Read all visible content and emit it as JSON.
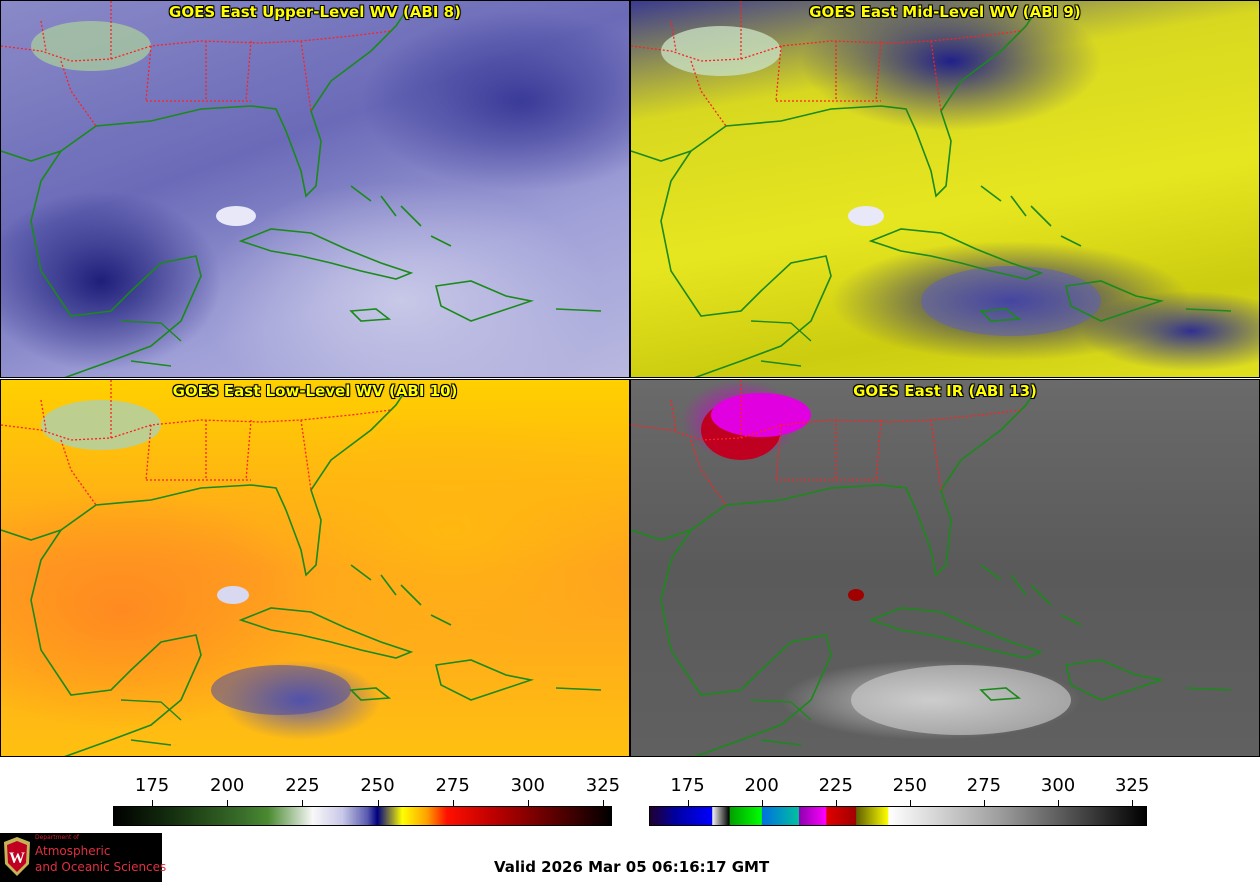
{
  "panels": [
    {
      "title": "GOES East Upper-Level WV (ABI 8)"
    },
    {
      "title": "GOES East Mid-Level WV (ABI 9)"
    },
    {
      "title": "GOES East Low-Level WV (ABI 10)"
    },
    {
      "title": "GOES East IR (ABI 13)"
    }
  ],
  "colorbars": [
    {
      "colormap": "water-vapor",
      "range": [
        162,
        328
      ],
      "ticks": [
        "175",
        "200",
        "225",
        "250",
        "275",
        "300",
        "325"
      ]
    },
    {
      "colormap": "infrared",
      "range": [
        162,
        330
      ],
      "ticks": [
        "175",
        "200",
        "225",
        "250",
        "275",
        "300",
        "325"
      ]
    }
  ],
  "map_colors": {
    "coastline": "#1a8a1a",
    "state_borders": "#ff2020",
    "title": "#ffff00"
  },
  "logo": {
    "line1": "Department of",
    "line2": "Atmospheric",
    "line3": "and Oceanic Sciences"
  },
  "valid_time": "Valid 2026 Mar 05 06:16:17 GMT"
}
